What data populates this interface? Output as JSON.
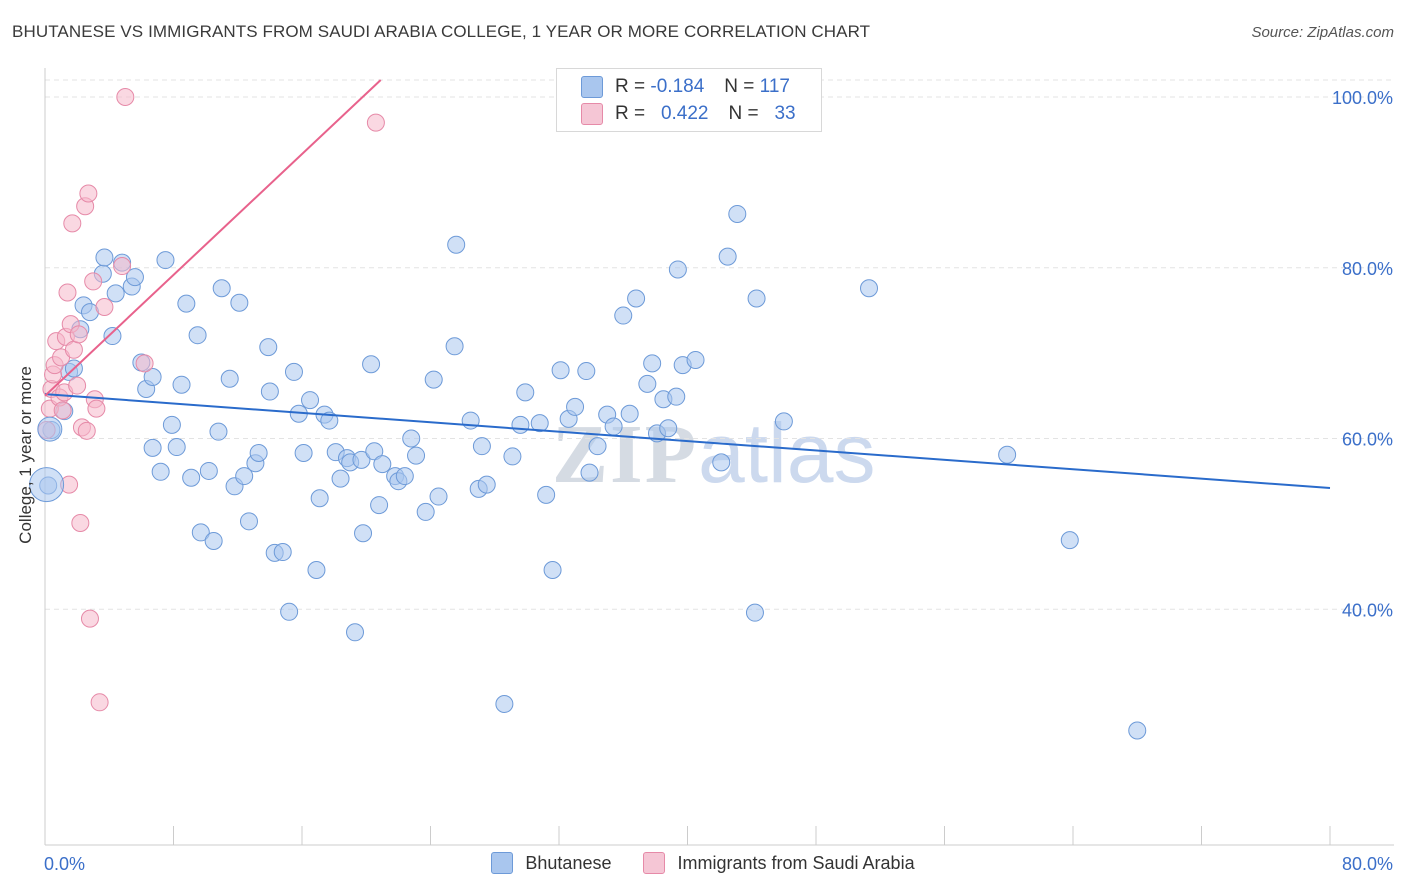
{
  "title": "BHUTANESE VS IMMIGRANTS FROM SAUDI ARABIA COLLEGE, 1 YEAR OR MORE CORRELATION CHART",
  "source": "Source: ZipAtlas.com",
  "watermark": {
    "zip": "ZIP",
    "atlas": "atlas"
  },
  "legend": {
    "rows": [
      {
        "r_label": "R =",
        "r_value": "-0.184",
        "n_label": "N =",
        "n_value": "117"
      },
      {
        "r_label": "R =",
        "r_value": "0.422",
        "n_label": "N =",
        "n_value": "33"
      }
    ]
  },
  "colors": {
    "blue_fill": "#a9c6ee",
    "blue_stroke": "#6d9ad8",
    "blue_line": "#2a6bcb",
    "pink_fill": "#f5b8cb",
    "pink_stroke": "#e68aa8",
    "pink_line": "#e8628c",
    "axis_text": "#3b6fc9",
    "grid": "#e3e3e3"
  },
  "chart_data": {
    "type": "scatter",
    "title": "BHUTANESE VS IMMIGRANTS FROM SAUDI ARABIA COLLEGE, 1 YEAR OR MORE CORRELATION CHART",
    "xlabel": "",
    "ylabel": "College, 1 year or more",
    "xlim": [
      0,
      80
    ],
    "ylim": [
      20,
      100
    ],
    "x_tick_labels": [
      "0.0%",
      "80.0%"
    ],
    "y_ticks": [
      40,
      60,
      80,
      100
    ],
    "y_tick_labels": [
      "40.0%",
      "60.0%",
      "80.0%",
      "100.0%"
    ],
    "grid": true,
    "legend_placement": "top-center",
    "series": [
      {
        "name": "Bhutanese",
        "color": "#a9c6ee",
        "trend": {
          "x": [
            0,
            80
          ],
          "y": [
            65.2,
            54.2
          ]
        },
        "points": [
          [
            0.2,
            54.5
          ],
          [
            0.4,
            61.0
          ],
          [
            1.2,
            63.2
          ],
          [
            1.5,
            67.8
          ],
          [
            1.8,
            68.2
          ],
          [
            2.2,
            72.8
          ],
          [
            2.4,
            75.6
          ],
          [
            2.8,
            74.8
          ],
          [
            3.6,
            79.3
          ],
          [
            3.7,
            81.2
          ],
          [
            4.2,
            72.0
          ],
          [
            4.4,
            77.0
          ],
          [
            4.8,
            80.6
          ],
          [
            5.4,
            77.8
          ],
          [
            5.6,
            78.9
          ],
          [
            6.0,
            68.9
          ],
          [
            6.3,
            65.8
          ],
          [
            6.7,
            67.2
          ],
          [
            6.7,
            58.9
          ],
          [
            7.2,
            56.1
          ],
          [
            7.5,
            80.9
          ],
          [
            7.9,
            61.6
          ],
          [
            8.2,
            59.0
          ],
          [
            8.5,
            66.3
          ],
          [
            8.8,
            75.8
          ],
          [
            9.1,
            55.4
          ],
          [
            9.5,
            72.1
          ],
          [
            9.7,
            49.0
          ],
          [
            10.2,
            56.2
          ],
          [
            10.5,
            48.0
          ],
          [
            10.8,
            60.8
          ],
          [
            11.0,
            77.6
          ],
          [
            11.5,
            67.0
          ],
          [
            11.8,
            54.4
          ],
          [
            12.1,
            75.9
          ],
          [
            12.4,
            55.6
          ],
          [
            12.7,
            50.3
          ],
          [
            13.1,
            57.1
          ],
          [
            13.3,
            58.3
          ],
          [
            13.9,
            70.7
          ],
          [
            14.0,
            65.5
          ],
          [
            14.3,
            46.6
          ],
          [
            14.8,
            46.7
          ],
          [
            15.2,
            39.7
          ],
          [
            15.5,
            67.8
          ],
          [
            15.8,
            62.9
          ],
          [
            16.1,
            58.3
          ],
          [
            16.5,
            64.5
          ],
          [
            16.9,
            44.6
          ],
          [
            17.1,
            53.0
          ],
          [
            17.4,
            62.8
          ],
          [
            17.7,
            62.1
          ],
          [
            18.1,
            58.4
          ],
          [
            18.4,
            55.3
          ],
          [
            18.8,
            57.7
          ],
          [
            19.0,
            57.2
          ],
          [
            19.3,
            37.3
          ],
          [
            19.7,
            57.5
          ],
          [
            19.8,
            48.9
          ],
          [
            20.3,
            68.7
          ],
          [
            20.5,
            58.5
          ],
          [
            20.8,
            52.2
          ],
          [
            21.0,
            57.0
          ],
          [
            21.8,
            55.6
          ],
          [
            22.0,
            55.0
          ],
          [
            22.4,
            55.6
          ],
          [
            22.8,
            60.0
          ],
          [
            23.1,
            58.0
          ],
          [
            23.7,
            51.4
          ],
          [
            24.2,
            66.9
          ],
          [
            24.5,
            53.2
          ],
          [
            25.5,
            70.8
          ],
          [
            25.6,
            82.7
          ],
          [
            26.5,
            62.1
          ],
          [
            27.0,
            54.1
          ],
          [
            27.2,
            59.1
          ],
          [
            27.5,
            54.6
          ],
          [
            28.6,
            28.9
          ],
          [
            29.1,
            57.9
          ],
          [
            29.6,
            61.6
          ],
          [
            29.9,
            65.4
          ],
          [
            30.8,
            61.8
          ],
          [
            31.2,
            53.4
          ],
          [
            31.6,
            44.6
          ],
          [
            32.1,
            68.0
          ],
          [
            32.6,
            62.3
          ],
          [
            33.0,
            63.7
          ],
          [
            33.7,
            67.9
          ],
          [
            33.9,
            56.0
          ],
          [
            34.4,
            59.1
          ],
          [
            35.0,
            62.8
          ],
          [
            35.4,
            61.4
          ],
          [
            36.0,
            74.4
          ],
          [
            36.4,
            62.9
          ],
          [
            36.8,
            76.4
          ],
          [
            37.5,
            66.4
          ],
          [
            37.8,
            68.8
          ],
          [
            38.1,
            60.6
          ],
          [
            38.5,
            64.6
          ],
          [
            38.8,
            61.2
          ],
          [
            39.3,
            64.9
          ],
          [
            39.4,
            79.8
          ],
          [
            39.7,
            68.6
          ],
          [
            40.5,
            69.2
          ],
          [
            42.1,
            57.2
          ],
          [
            42.5,
            81.3
          ],
          [
            43.1,
            86.3
          ],
          [
            44.3,
            76.4
          ],
          [
            44.2,
            39.6
          ],
          [
            46.0,
            62.0
          ],
          [
            51.3,
            77.6
          ],
          [
            59.9,
            58.1
          ],
          [
            63.8,
            48.1
          ],
          [
            68.0,
            25.8
          ]
        ]
      },
      {
        "name": "Immigrants from Saudi Arabia",
        "color": "#f5b8cb",
        "trend": {
          "x": [
            0,
            20.9
          ],
          "y": [
            65.0,
            100.0
          ]
        },
        "points": [
          [
            0.1,
            61.0
          ],
          [
            0.3,
            63.5
          ],
          [
            0.4,
            65.8
          ],
          [
            0.5,
            67.5
          ],
          [
            0.6,
            68.6
          ],
          [
            0.7,
            71.4
          ],
          [
            0.9,
            64.8
          ],
          [
            1.0,
            69.5
          ],
          [
            1.1,
            63.3
          ],
          [
            1.2,
            65.4
          ],
          [
            1.3,
            71.9
          ],
          [
            1.4,
            77.1
          ],
          [
            1.5,
            54.6
          ],
          [
            1.6,
            73.4
          ],
          [
            1.7,
            85.2
          ],
          [
            1.8,
            70.4
          ],
          [
            2.1,
            72.2
          ],
          [
            2.2,
            50.1
          ],
          [
            2.3,
            61.3
          ],
          [
            2.5,
            87.2
          ],
          [
            2.6,
            60.9
          ],
          [
            2.7,
            88.7
          ],
          [
            2.8,
            38.9
          ],
          [
            3.0,
            78.4
          ],
          [
            3.1,
            64.6
          ],
          [
            3.2,
            63.5
          ],
          [
            3.4,
            29.1
          ],
          [
            3.7,
            75.4
          ],
          [
            4.8,
            80.2
          ],
          [
            5.0,
            100.0
          ],
          [
            6.2,
            68.8
          ],
          [
            20.6,
            97.0
          ],
          [
            2.0,
            66.2
          ]
        ]
      }
    ]
  },
  "bottom_legend": [
    "Bhutanese",
    "Immigrants from Saudi Arabia"
  ]
}
